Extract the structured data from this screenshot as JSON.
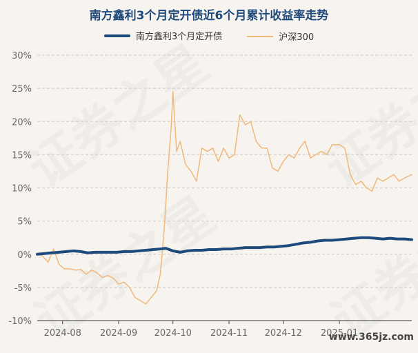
{
  "chart_data": {
    "type": "line",
    "title": "南方鑫利3个月定开债近6个月累计收益率走势",
    "ylim": [
      -10,
      30
    ],
    "yticks": [
      -10,
      -5,
      0,
      5,
      10,
      15,
      20,
      25,
      30
    ],
    "ytick_labels": [
      "-10%",
      "-5%",
      "0%",
      "5%",
      "10%",
      "15%",
      "20%",
      "25%",
      "30%"
    ],
    "x_range": [
      "2024-07-18",
      "2025-02-10"
    ],
    "xtick_labels": [
      "2024-08",
      "2024-09",
      "2024-10",
      "2024-11",
      "2024-12",
      "2025-01"
    ],
    "xtick_dates": [
      "2024-08-01",
      "2024-09-01",
      "2024-10-01",
      "2024-11-01",
      "2024-12-01",
      "2025-01-01"
    ],
    "grid": "horizontal dashed",
    "legend_position": "top",
    "series": [
      {
        "name": "南方鑫利3个月定开债",
        "color": "#1f4a7c",
        "points": [
          [
            "2024-07-18",
            0.0
          ],
          [
            "2024-07-22",
            0.1
          ],
          [
            "2024-07-26",
            0.2
          ],
          [
            "2024-07-30",
            0.3
          ],
          [
            "2024-08-03",
            0.4
          ],
          [
            "2024-08-07",
            0.5
          ],
          [
            "2024-08-11",
            0.4
          ],
          [
            "2024-08-15",
            0.2
          ],
          [
            "2024-08-19",
            0.3
          ],
          [
            "2024-08-23",
            0.3
          ],
          [
            "2024-08-27",
            0.3
          ],
          [
            "2024-08-31",
            0.3
          ],
          [
            "2024-09-04",
            0.4
          ],
          [
            "2024-09-08",
            0.4
          ],
          [
            "2024-09-12",
            0.5
          ],
          [
            "2024-09-16",
            0.6
          ],
          [
            "2024-09-20",
            0.7
          ],
          [
            "2024-09-24",
            0.8
          ],
          [
            "2024-09-27",
            0.9
          ],
          [
            "2024-10-01",
            0.5
          ],
          [
            "2024-10-05",
            0.3
          ],
          [
            "2024-10-09",
            0.5
          ],
          [
            "2024-10-13",
            0.6
          ],
          [
            "2024-10-17",
            0.6
          ],
          [
            "2024-10-21",
            0.7
          ],
          [
            "2024-10-25",
            0.7
          ],
          [
            "2024-10-29",
            0.8
          ],
          [
            "2024-11-02",
            0.8
          ],
          [
            "2024-11-06",
            0.9
          ],
          [
            "2024-11-10",
            1.0
          ],
          [
            "2024-11-14",
            1.0
          ],
          [
            "2024-11-18",
            1.0
          ],
          [
            "2024-11-22",
            1.1
          ],
          [
            "2024-11-26",
            1.1
          ],
          [
            "2024-11-30",
            1.2
          ],
          [
            "2024-12-04",
            1.3
          ],
          [
            "2024-12-08",
            1.5
          ],
          [
            "2024-12-12",
            1.7
          ],
          [
            "2024-12-16",
            1.8
          ],
          [
            "2024-12-20",
            2.0
          ],
          [
            "2024-12-24",
            2.1
          ],
          [
            "2024-12-28",
            2.1
          ],
          [
            "2025-01-01",
            2.2
          ],
          [
            "2025-01-05",
            2.3
          ],
          [
            "2025-01-09",
            2.4
          ],
          [
            "2025-01-13",
            2.5
          ],
          [
            "2025-01-17",
            2.5
          ],
          [
            "2025-01-21",
            2.4
          ],
          [
            "2025-01-25",
            2.3
          ],
          [
            "2025-01-29",
            2.4
          ],
          [
            "2025-02-02",
            2.3
          ],
          [
            "2025-02-06",
            2.3
          ],
          [
            "2025-02-10",
            2.2
          ]
        ]
      },
      {
        "name": "沪深300",
        "color": "#f0b87a",
        "points": [
          [
            "2024-07-18",
            0.0
          ],
          [
            "2024-07-21",
            -0.3
          ],
          [
            "2024-07-24",
            -1.2
          ],
          [
            "2024-07-27",
            0.8
          ],
          [
            "2024-07-30",
            -1.5
          ],
          [
            "2024-08-02",
            -2.2
          ],
          [
            "2024-08-05",
            -2.2
          ],
          [
            "2024-08-08",
            -2.4
          ],
          [
            "2024-08-11",
            -2.3
          ],
          [
            "2024-08-14",
            -3.0
          ],
          [
            "2024-08-17",
            -2.4
          ],
          [
            "2024-08-20",
            -2.8
          ],
          [
            "2024-08-23",
            -3.5
          ],
          [
            "2024-08-26",
            -3.2
          ],
          [
            "2024-08-29",
            -3.6
          ],
          [
            "2024-09-01",
            -4.5
          ],
          [
            "2024-09-04",
            -4.2
          ],
          [
            "2024-09-07",
            -5.0
          ],
          [
            "2024-09-10",
            -6.5
          ],
          [
            "2024-09-13",
            -7.0
          ],
          [
            "2024-09-16",
            -7.5
          ],
          [
            "2024-09-19",
            -6.5
          ],
          [
            "2024-09-22",
            -5.5
          ],
          [
            "2024-09-24",
            -3.0
          ],
          [
            "2024-09-26",
            3.0
          ],
          [
            "2024-09-28",
            12.0
          ],
          [
            "2024-09-30",
            19.0
          ],
          [
            "2024-10-01",
            24.5
          ],
          [
            "2024-10-03",
            15.5
          ],
          [
            "2024-10-05",
            17.0
          ],
          [
            "2024-10-08",
            13.5
          ],
          [
            "2024-10-11",
            12.5
          ],
          [
            "2024-10-14",
            11.0
          ],
          [
            "2024-10-17",
            16.0
          ],
          [
            "2024-10-20",
            15.5
          ],
          [
            "2024-10-23",
            16.0
          ],
          [
            "2024-10-26",
            14.0
          ],
          [
            "2024-10-29",
            16.0
          ],
          [
            "2024-11-01",
            14.5
          ],
          [
            "2024-11-04",
            15.0
          ],
          [
            "2024-11-07",
            21.0
          ],
          [
            "2024-11-10",
            19.5
          ],
          [
            "2024-11-13",
            20.0
          ],
          [
            "2024-11-16",
            17.0
          ],
          [
            "2024-11-19",
            16.0
          ],
          [
            "2024-11-22",
            16.0
          ],
          [
            "2024-11-25",
            13.0
          ],
          [
            "2024-11-28",
            12.5
          ],
          [
            "2024-12-01",
            14.0
          ],
          [
            "2024-12-04",
            15.0
          ],
          [
            "2024-12-07",
            14.5
          ],
          [
            "2024-12-10",
            16.0
          ],
          [
            "2024-12-13",
            17.0
          ],
          [
            "2024-12-16",
            14.5
          ],
          [
            "2024-12-19",
            15.0
          ],
          [
            "2024-12-22",
            15.5
          ],
          [
            "2024-12-25",
            15.0
          ],
          [
            "2024-12-28",
            16.5
          ],
          [
            "2025-01-01",
            16.5
          ],
          [
            "2025-01-04",
            16.0
          ],
          [
            "2025-01-07",
            12.0
          ],
          [
            "2025-01-10",
            10.5
          ],
          [
            "2025-01-13",
            11.0
          ],
          [
            "2025-01-16",
            10.0
          ],
          [
            "2025-01-19",
            9.5
          ],
          [
            "2025-01-22",
            11.5
          ],
          [
            "2025-01-25",
            11.0
          ],
          [
            "2025-01-28",
            11.5
          ],
          [
            "2025-01-31",
            12.0
          ],
          [
            "2025-02-03",
            11.0
          ],
          [
            "2025-02-06",
            11.5
          ],
          [
            "2025-02-10",
            12.0
          ]
        ]
      }
    ]
  },
  "decor": {
    "watermark_text": "证券之星",
    "site_mark": "www.365jz.com"
  }
}
